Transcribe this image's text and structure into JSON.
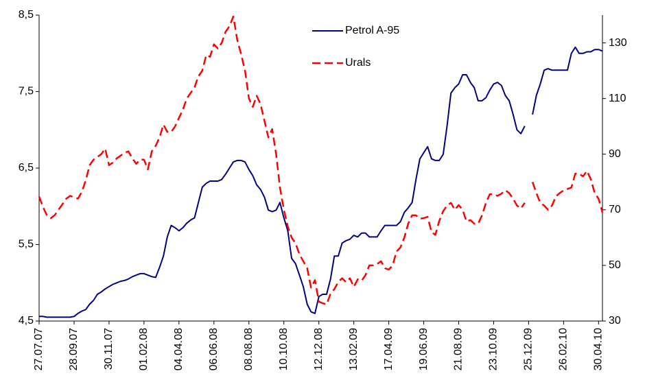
{
  "chart_data": {
    "type": "line",
    "categories": [
      "27.07.07",
      null,
      null,
      null,
      null,
      null,
      null,
      null,
      null,
      "28.09.07",
      null,
      null,
      null,
      null,
      null,
      null,
      null,
      null,
      "30.11.07",
      null,
      null,
      null,
      null,
      null,
      null,
      null,
      null,
      "01.02.08",
      null,
      null,
      null,
      null,
      null,
      null,
      null,
      null,
      "04.04.08",
      null,
      null,
      null,
      null,
      null,
      null,
      null,
      null,
      "06.06.08",
      null,
      null,
      null,
      null,
      null,
      null,
      null,
      null,
      "08.08.08",
      null,
      null,
      null,
      null,
      null,
      null,
      null,
      null,
      "10.10.08",
      null,
      null,
      null,
      null,
      null,
      null,
      null,
      null,
      "12.12.08",
      null,
      null,
      null,
      null,
      null,
      null,
      null,
      null,
      "13.02.09",
      null,
      null,
      null,
      null,
      null,
      null,
      null,
      null,
      "17.04.09",
      null,
      null,
      null,
      null,
      null,
      null,
      null,
      null,
      "19.06.09",
      null,
      null,
      null,
      null,
      null,
      null,
      null,
      null,
      "21.08.09",
      null,
      null,
      null,
      null,
      null,
      null,
      null,
      null,
      "23.10.09",
      null,
      null,
      null,
      null,
      null,
      null,
      null,
      null,
      "25.12.09",
      null,
      null,
      null,
      null,
      null,
      null,
      null,
      null,
      "26.02.10",
      null,
      null,
      null,
      null,
      null,
      null,
      null,
      null,
      "30.04.10",
      null
    ],
    "series": [
      {
        "name": "Petrol A-95",
        "color": "#000080",
        "dashed": false,
        "axis": "y",
        "values": [
          4.56,
          4.56,
          4.55,
          4.55,
          4.55,
          4.55,
          4.55,
          4.55,
          4.55,
          4.56,
          4.6,
          4.63,
          4.65,
          4.72,
          4.77,
          4.85,
          4.88,
          4.92,
          4.95,
          4.98,
          5.0,
          5.02,
          5.03,
          5.05,
          5.08,
          5.1,
          5.12,
          5.12,
          5.1,
          5.08,
          5.07,
          5.2,
          5.35,
          5.6,
          5.75,
          5.72,
          5.68,
          5.72,
          5.78,
          5.82,
          5.85,
          6.05,
          6.25,
          6.3,
          6.33,
          6.33,
          6.33,
          6.35,
          6.42,
          6.5,
          6.58,
          6.6,
          6.6,
          6.58,
          6.48,
          6.4,
          6.28,
          6.22,
          6.12,
          5.95,
          5.93,
          5.95,
          6.05,
          5.85,
          5.68,
          5.32,
          5.25,
          5.1,
          4.95,
          4.72,
          4.62,
          4.6,
          4.82,
          4.85,
          4.85,
          5.05,
          5.35,
          5.35,
          5.52,
          5.55,
          5.57,
          5.62,
          5.6,
          5.65,
          5.65,
          5.6,
          5.6,
          5.6,
          5.68,
          5.75,
          5.75,
          5.75,
          5.75,
          5.8,
          5.92,
          5.98,
          6.05,
          6.35,
          6.62,
          6.7,
          6.78,
          6.62,
          6.6,
          6.6,
          6.68,
          7.05,
          7.48,
          7.55,
          7.6,
          7.72,
          7.72,
          7.62,
          7.55,
          7.38,
          7.38,
          7.42,
          7.52,
          7.6,
          7.62,
          7.58,
          7.45,
          7.38,
          7.2,
          7.0,
          6.95,
          7.05,
          null,
          7.2,
          7.45,
          7.6,
          7.78,
          7.8,
          7.78,
          7.78,
          7.78,
          7.78,
          7.78,
          8.0,
          8.08,
          8.0,
          8.0,
          8.02,
          8.02,
          8.05,
          8.05,
          8.03
        ]
      },
      {
        "name": "Urals",
        "color": "#ff0000",
        "dashed": true,
        "axis": "y2",
        "values": [
          74.8,
          71,
          68,
          67,
          68,
          70,
          72,
          74,
          75,
          74.5,
          74,
          76.5,
          80.5,
          86,
          88,
          89,
          90,
          92,
          86,
          87,
          88.5,
          89.5,
          90.5,
          91,
          88.5,
          86.5,
          88,
          88,
          84.5,
          91,
          93,
          96,
          100.6,
          98,
          98,
          100,
          103,
          106,
          110,
          112,
          114,
          118,
          120,
          125.6,
          125,
          129.5,
          128,
          130,
          134,
          136,
          139.5,
          131,
          126,
          120,
          110,
          107,
          111,
          108,
          102,
          96,
          99,
          90,
          78,
          70,
          64,
          60,
          58,
          54,
          51.5,
          49,
          42,
          44.7,
          37,
          36.4,
          36,
          39.8,
          41.5,
          44,
          45.4,
          44,
          45.4,
          42.3,
          45,
          44.5,
          46.5,
          50,
          50,
          50.5,
          51.5,
          49,
          48.5,
          50,
          55,
          56.5,
          60,
          65,
          68,
          68,
          66.8,
          67,
          67.5,
          62,
          61,
          66,
          69.5,
          71.5,
          72.5,
          70,
          71.7,
          70,
          65.8,
          66.3,
          65,
          65,
          68,
          72.4,
          75.6,
          75.6,
          75,
          75.8,
          77,
          76,
          74,
          71.5,
          70.5,
          72.5,
          null,
          80,
          76,
          72.5,
          71.5,
          70,
          71.5,
          74.8,
          76,
          77,
          77.5,
          78,
          83,
          83,
          82,
          84,
          81,
          76,
          74,
          69
        ]
      }
    ],
    "ylim": [
      4.5,
      8.5
    ],
    "yticks": [
      {
        "value": 4.5,
        "label": "4,5"
      },
      {
        "value": 5.5,
        "label": "5,5"
      },
      {
        "value": 6.5,
        "label": "6,5"
      },
      {
        "value": 7.5,
        "label": "7,5"
      },
      {
        "value": 8.5,
        "label": "8,5"
      }
    ],
    "y2lim": [
      30,
      140
    ],
    "y2ticks": [
      30,
      50,
      70,
      90,
      110,
      130
    ],
    "grid": false,
    "legend": "upper center"
  }
}
